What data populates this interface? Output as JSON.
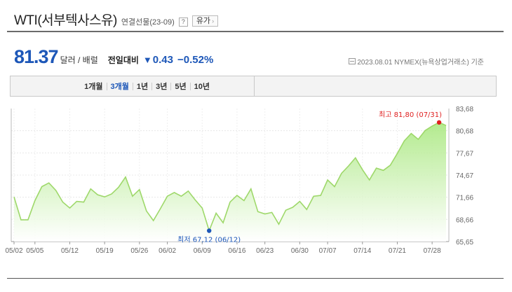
{
  "header": {
    "title": "WTI(서부텍사스유)",
    "subtitle": "연결선물(23-09)",
    "help_label": "?",
    "oil_button_label": "유가",
    "oil_button_chevron": "›"
  },
  "quote": {
    "price": "81.37",
    "unit": "달러 / 배럴",
    "change_label": "전일대비",
    "change_arrow": "▼",
    "change_value": "0.43",
    "change_percent": "−0.52%",
    "source": "2023.08.01  NYMEX(뉴욕상업거래소) 기준"
  },
  "periods": {
    "items": [
      "1개월",
      "3개월",
      "1년",
      "3년",
      "5년",
      "10년"
    ],
    "active_index": 1
  },
  "colors": {
    "accent": "#1d57b8",
    "line": "#9ed86a",
    "area_top": "#a6e77b",
    "area_bottom": "#ffffff",
    "max_marker": "#e02020",
    "min_marker": "#1d57b8"
  },
  "chart_data": {
    "type": "area",
    "title": "",
    "xlabel": "",
    "ylabel": "",
    "ylim": [
      65.65,
      83.68
    ],
    "yticks": [
      "83,68",
      "80,68",
      "77,67",
      "74,67",
      "71,66",
      "68,66",
      "65,65"
    ],
    "ytick_values": [
      83.68,
      80.68,
      77.67,
      74.67,
      71.66,
      68.66,
      65.65
    ],
    "xticks": [
      "05/02",
      "05/05",
      "05/12",
      "05/19",
      "05/26",
      "06/02",
      "06/09",
      "06/16",
      "06/23",
      "06/30",
      "07/07",
      "07/14",
      "07/21",
      "07/28"
    ],
    "xtick_indices": [
      0,
      3,
      8,
      13,
      18,
      22,
      27,
      32,
      36,
      41,
      45,
      50,
      55,
      60
    ],
    "values": [
      71.7,
      68.6,
      68.6,
      71.2,
      73.1,
      73.6,
      72.6,
      71.0,
      70.2,
      71.1,
      71.0,
      72.8,
      72.0,
      71.7,
      72.1,
      73.0,
      74.4,
      71.8,
      72.7,
      69.8,
      68.5,
      70.1,
      71.8,
      72.3,
      71.8,
      72.5,
      71.3,
      70.2,
      67.12,
      69.5,
      68.2,
      71.0,
      71.9,
      71.2,
      72.8,
      69.7,
      69.4,
      69.6,
      68.0,
      69.9,
      70.3,
      71.1,
      70.0,
      71.8,
      71.9,
      74.0,
      73.1,
      74.9,
      75.9,
      77.0,
      75.4,
      74.0,
      75.6,
      75.3,
      76.0,
      77.6,
      79.3,
      80.3,
      79.5,
      80.7,
      81.3,
      81.8,
      81.37
    ],
    "max": {
      "label": "최고 81,80 (07/31)",
      "index": 61,
      "value": 81.8
    },
    "min": {
      "label": "최저 67,12 (06/12)",
      "index": 28,
      "value": 67.12
    },
    "grid": true
  }
}
